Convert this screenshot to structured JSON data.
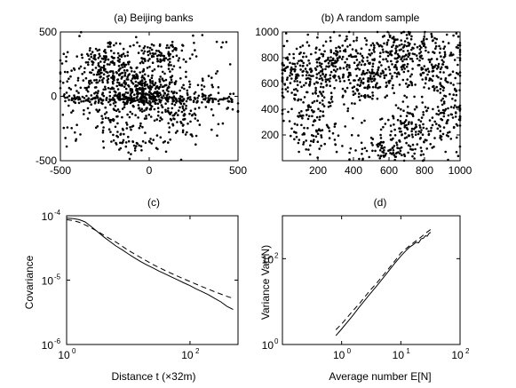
{
  "chart_data": [
    {
      "id": "a",
      "type": "scatter",
      "title": "(a) Beijing banks",
      "xlim": [
        -500,
        500
      ],
      "ylim": [
        -500,
        500
      ],
      "xticks": [
        -500,
        0,
        500
      ],
      "xtick_labels": [
        "-500",
        "0",
        "500"
      ],
      "yticks": [
        -500,
        0,
        500
      ],
      "ytick_labels": [
        "-500",
        "0",
        "500"
      ],
      "point_count": 1200,
      "clusters": [
        {
          "x": -320,
          "y": 120,
          "sx": 110,
          "sy": 140,
          "n": 120
        },
        {
          "x": -250,
          "y": 300,
          "sx": 60,
          "sy": 80,
          "n": 60
        },
        {
          "x": -150,
          "y": 180,
          "sx": 70,
          "sy": 90,
          "n": 110
        },
        {
          "x": -100,
          "y": 20,
          "sx": 90,
          "sy": 60,
          "n": 130
        },
        {
          "x": 0,
          "y": -20,
          "sx": 60,
          "sy": 90,
          "n": 80
        },
        {
          "x": 60,
          "y": 30,
          "sx": 80,
          "sy": 80,
          "n": 120
        },
        {
          "x": 120,
          "y": 320,
          "sx": 50,
          "sy": 50,
          "n": 50
        },
        {
          "x": 0,
          "y": 300,
          "sx": 60,
          "sy": 60,
          "n": 40
        },
        {
          "x": 170,
          "y": -150,
          "sx": 60,
          "sy": 80,
          "n": 60
        },
        {
          "x": 300,
          "y": -50,
          "sx": 90,
          "sy": 100,
          "n": 50
        },
        {
          "x": -200,
          "y": -200,
          "sx": 90,
          "sy": 90,
          "n": 60
        },
        {
          "x": -60,
          "y": -350,
          "sx": 80,
          "sy": 50,
          "n": 30
        }
      ],
      "band": {
        "y": -20,
        "x_range": [
          -480,
          500
        ],
        "n": 130
      },
      "background_points": 110,
      "series_color": "#000000"
    },
    {
      "id": "b",
      "type": "scatter",
      "title": "(b) A random sample",
      "xlim": [
        0,
        1000
      ],
      "ylim": [
        0,
        1000
      ],
      "xticks": [
        200,
        400,
        600,
        800,
        1000
      ],
      "xtick_labels": [
        "200",
        "400",
        "600",
        "800",
        "1000"
      ],
      "yticks": [
        200,
        400,
        600,
        800,
        1000
      ],
      "ytick_labels": [
        "200",
        "400",
        "600",
        "800",
        "1000"
      ],
      "point_count": 1200,
      "clusters": [
        {
          "x": 130,
          "y": 650,
          "sx": 90,
          "sy": 110,
          "n": 140
        },
        {
          "x": 300,
          "y": 800,
          "sx": 90,
          "sy": 80,
          "n": 120
        },
        {
          "x": 480,
          "y": 620,
          "sx": 90,
          "sy": 90,
          "n": 130
        },
        {
          "x": 650,
          "y": 850,
          "sx": 100,
          "sy": 80,
          "n": 120
        },
        {
          "x": 850,
          "y": 750,
          "sx": 100,
          "sy": 110,
          "n": 130
        },
        {
          "x": 750,
          "y": 230,
          "sx": 80,
          "sy": 90,
          "n": 100
        },
        {
          "x": 600,
          "y": 80,
          "sx": 80,
          "sy": 40,
          "n": 60
        },
        {
          "x": 150,
          "y": 300,
          "sx": 80,
          "sy": 90,
          "n": 70
        },
        {
          "x": 950,
          "y": 400,
          "sx": 50,
          "sy": 90,
          "n": 60
        }
      ],
      "background_points": 270,
      "series_color": "#000000"
    },
    {
      "id": "c",
      "type": "line",
      "title": "(c)",
      "xlabel": "Distance t (×32m)",
      "ylabel": "Covariance",
      "x_scale": "log",
      "y_scale": "log",
      "xlim": [
        1,
        600
      ],
      "ylim": [
        1e-06,
        0.0001
      ],
      "xticks": [
        1,
        100
      ],
      "xtick_labels": [
        {
          "base": "10",
          "exp": "0"
        },
        {
          "base": "10",
          "exp": "2"
        }
      ],
      "yticks": [
        1e-06,
        1e-05,
        0.0001
      ],
      "ytick_labels": [
        {
          "base": "10",
          "exp": "-6"
        },
        {
          "base": "10",
          "exp": "-5"
        },
        {
          "base": "10",
          "exp": "-4"
        }
      ],
      "series": [
        {
          "style": "solid",
          "x": [
            1,
            1.3,
            1.6,
            2,
            2.5,
            3.2,
            4,
            5,
            6.3,
            8,
            10,
            12.6,
            15.8,
            20,
            25,
            31.6,
            40,
            50,
            63,
            79,
            100,
            126,
            158,
            200,
            251,
            316,
            398,
            500
          ],
          "y": [
            9.2e-05,
            9e-05,
            8.7e-05,
            8e-05,
            6.8e-05,
            5.6e-05,
            4.7e-05,
            4e-05,
            3.4e-05,
            2.95e-05,
            2.55e-05,
            2.22e-05,
            1.94e-05,
            1.72e-05,
            1.55e-05,
            1.38e-05,
            1.24e-05,
            1.12e-05,
            1.01e-05,
            9.1e-06,
            8.2e-06,
            7.3e-06,
            6.6e-06,
            5.9e-06,
            5.2e-06,
            4.6e-06,
            3.9e-06,
            3.5e-06
          ]
        },
        {
          "style": "dashed",
          "x": [
            1,
            1.3,
            1.6,
            2,
            2.5,
            3.2,
            4,
            5,
            6.3,
            8,
            10,
            15.8,
            25,
            40,
            63,
            100,
            158,
            251,
            398,
            500
          ],
          "y": [
            8.7e-05,
            8.4e-05,
            7.9e-05,
            7.2e-05,
            6.5e-05,
            5.7e-05,
            5e-05,
            4.4e-05,
            3.9e-05,
            3.35e-05,
            2.9e-05,
            2.25e-05,
            1.75e-05,
            1.4e-05,
            1.15e-05,
            9.5e-06,
            7.9e-06,
            6.6e-06,
            5.6e-06,
            5.2e-06
          ]
        }
      ]
    },
    {
      "id": "d",
      "type": "line",
      "title": "(d)",
      "xlabel": "Average number E[N]",
      "ylabel": "Variance Var(N)",
      "x_scale": "log",
      "y_scale": "log",
      "xlim": [
        0.1,
        100
      ],
      "ylim": [
        1,
        1000
      ],
      "xticks": [
        1,
        10,
        100
      ],
      "xtick_labels": [
        {
          "base": "10",
          "exp": "0"
        },
        {
          "base": "10",
          "exp": "1"
        },
        {
          "base": "10",
          "exp": "2"
        }
      ],
      "yticks": [
        1,
        100
      ],
      "ytick_labels": [
        {
          "base": "10",
          "exp": "0"
        },
        {
          "base": "10",
          "exp": "2"
        }
      ],
      "series": [
        {
          "style": "solid",
          "x": [
            0.8,
            1,
            1.5,
            2,
            3,
            4,
            6,
            8,
            10,
            12,
            14,
            16,
            18,
            20,
            22,
            24,
            26,
            28,
            30,
            32
          ],
          "y": [
            1.6,
            2.3,
            4.5,
            7.5,
            15,
            24,
            48,
            80,
            115,
            150,
            185,
            210,
            240,
            235,
            290,
            300,
            340,
            335,
            390,
            410
          ]
        },
        {
          "style": "dashed",
          "x": [
            0.8,
            1,
            1.5,
            2,
            3,
            4,
            6,
            8,
            10,
            14,
            18,
            22,
            26,
            30,
            32
          ],
          "y": [
            2.2,
            3.0,
            5.8,
            9.0,
            18,
            28,
            55,
            90,
            135,
            200,
            260,
            320,
            390,
            450,
            480
          ]
        }
      ]
    }
  ]
}
